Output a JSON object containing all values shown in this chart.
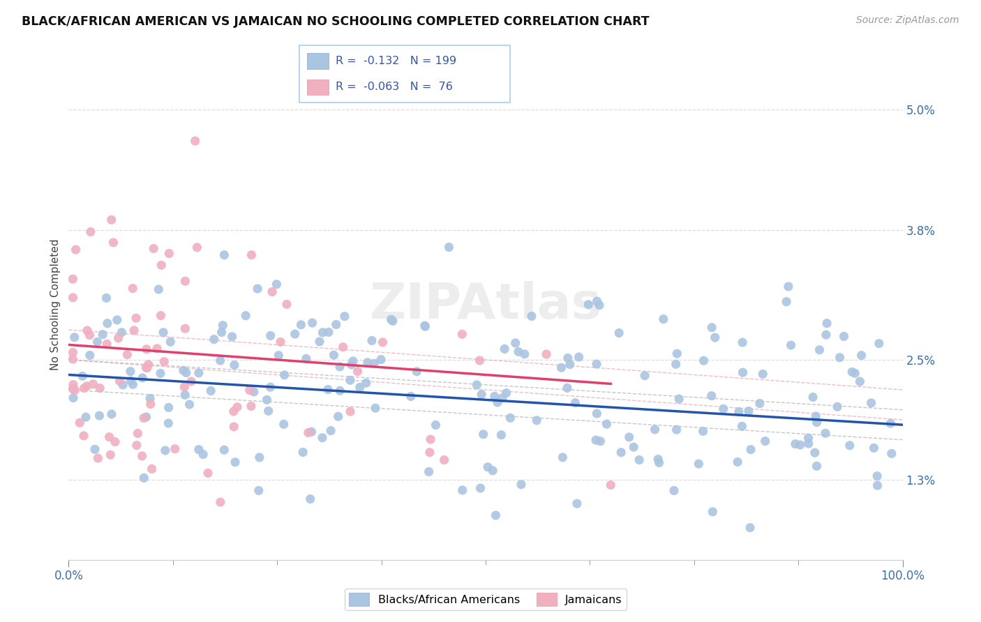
{
  "title": "BLACK/AFRICAN AMERICAN VS JAMAICAN NO SCHOOLING COMPLETED CORRELATION CHART",
  "source": "Source: ZipAtlas.com",
  "ylabel": "No Schooling Completed",
  "x_min": 0.0,
  "x_max": 100.0,
  "y_min": 0.5,
  "y_max": 5.6,
  "y_ticks": [
    1.3,
    2.5,
    3.8,
    5.0
  ],
  "x_ticks_show": [
    0.0,
    100.0
  ],
  "x_ticks_minor": [
    12.5,
    25.0,
    37.5,
    50.0,
    62.5,
    75.0,
    87.5
  ],
  "blue_color": "#aac5e2",
  "blue_line_color": "#2255aa",
  "pink_color": "#f0b0c0",
  "pink_line_color": "#e0406a",
  "legend_r1": "R =  -0.132",
  "legend_n1": "N = 199",
  "legend_r2": "R =  -0.063",
  "legend_n2": "N =  76",
  "blue_series_label": "Blacks/African Americans",
  "pink_series_label": "Jamaicans",
  "watermark": "ZIPAtlas",
  "background_color": "#ffffff",
  "grid_color": "#dddddd",
  "blue_R": -0.132,
  "blue_N": 199,
  "pink_R": -0.063,
  "pink_N": 76,
  "blue_intercept": 2.35,
  "blue_slope": -0.005,
  "pink_intercept": 2.65,
  "pink_slope": -0.006,
  "blue_seed": 42,
  "pink_seed": 12
}
